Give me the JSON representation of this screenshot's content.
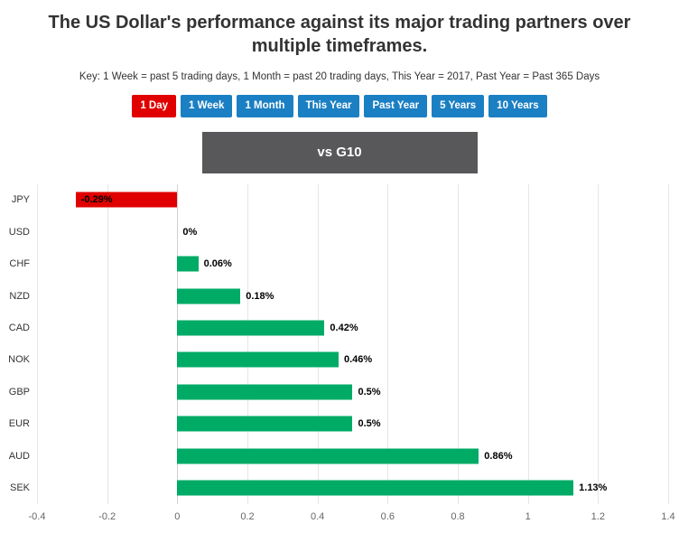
{
  "page": {
    "title": "The US Dollar's performance against its major trading partners over multiple timeframes.",
    "key_text": "Key: 1 Week = past 5 trading days, 1 Month = past 20 trading days, This Year = 2017, Past Year = Past 365 Days"
  },
  "timeframe_buttons": [
    {
      "label": "1 Day",
      "active": true
    },
    {
      "label": "1 Week",
      "active": false
    },
    {
      "label": "1 Month",
      "active": false
    },
    {
      "label": "This Year",
      "active": false
    },
    {
      "label": "Past Year",
      "active": false
    },
    {
      "label": "5 Years",
      "active": false
    },
    {
      "label": "10 Years",
      "active": false
    }
  ],
  "group_header": "vs G10",
  "chart_data": {
    "type": "bar",
    "orientation": "horizontal",
    "title": "vs G10",
    "categories": [
      "JPY",
      "USD",
      "CHF",
      "NZD",
      "CAD",
      "NOK",
      "GBP",
      "EUR",
      "AUD",
      "SEK"
    ],
    "values": [
      -0.29,
      0,
      0.06,
      0.18,
      0.42,
      0.46,
      0.5,
      0.5,
      0.86,
      1.13
    ],
    "data_labels": [
      "-0.29%",
      "0%",
      "0.06%",
      "0.18%",
      "0.42%",
      "0.46%",
      "0.5%",
      "0.5%",
      "0.86%",
      "1.13%"
    ],
    "xlim": [
      -0.4,
      1.4
    ],
    "x_ticks": [
      -0.4,
      -0.2,
      0,
      0.2,
      0.4,
      0.6,
      0.8,
      1,
      1.2,
      1.4
    ],
    "x_tick_labels": [
      "-0.4",
      "-0.2",
      "0",
      "0.2",
      "0.4",
      "0.6",
      "0.8",
      "1",
      "1.2",
      "1.4"
    ],
    "grid": true,
    "legend": "none"
  },
  "colors": {
    "positive_bar": "#00ab66",
    "negative_bar": "#e00000",
    "active_button": "#e00000",
    "inactive_button": "#1b7fc3",
    "banner_bg": "#58585a"
  }
}
